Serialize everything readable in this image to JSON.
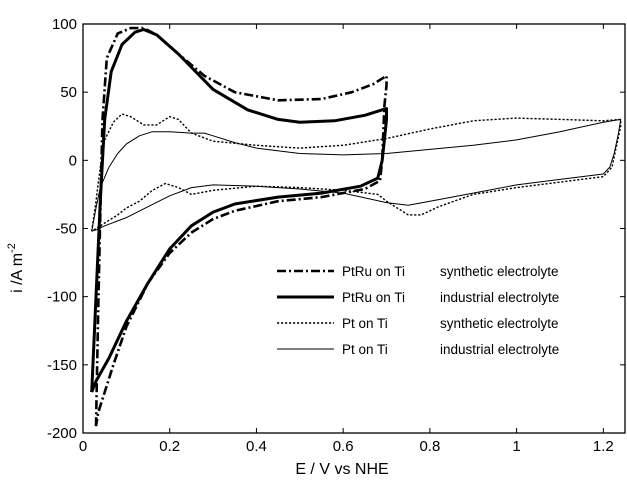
{
  "chart_data": {
    "type": "line",
    "title": "",
    "xlabel": "E / V vs NHE",
    "ylabel": "i /A m-2",
    "ylabel_main": "i /A m",
    "ylabel_sup": "-2",
    "xlim": [
      0,
      1.25
    ],
    "ylim": [
      -200,
      100
    ],
    "xticks": [
      0,
      0.2,
      0.4,
      0.6,
      0.8,
      1,
      1.2
    ],
    "xtick_labels": [
      "0",
      "0.2",
      "0.4",
      "0.6",
      "0.8",
      "1",
      "1.2"
    ],
    "yticks": [
      100,
      50,
      0,
      -50,
      -100,
      -150,
      -200
    ],
    "ytick_labels": [
      "100",
      "50",
      "0",
      "-50",
      "-100",
      "-150",
      "-200"
    ],
    "grid": false,
    "legend_position": "lower-right",
    "series": [
      {
        "style": "dashdot",
        "color": "#000000",
        "legend_material": "PtRu on Ti",
        "legend_desc": "synthetic electrolyte",
        "points": [
          [
            0.03,
            -195
          ],
          [
            0.035,
            -110
          ],
          [
            0.04,
            -40
          ],
          [
            0.045,
            30
          ],
          [
            0.055,
            75
          ],
          [
            0.08,
            93
          ],
          [
            0.11,
            97
          ],
          [
            0.14,
            97
          ],
          [
            0.17,
            92
          ],
          [
            0.22,
            78
          ],
          [
            0.28,
            62
          ],
          [
            0.35,
            50
          ],
          [
            0.45,
            44
          ],
          [
            0.55,
            45
          ],
          [
            0.62,
            50
          ],
          [
            0.67,
            56
          ],
          [
            0.7,
            62
          ],
          [
            0.7,
            55
          ],
          [
            0.695,
            40
          ],
          [
            0.69,
            0
          ],
          [
            0.685,
            -15
          ],
          [
            0.65,
            -21
          ],
          [
            0.55,
            -27
          ],
          [
            0.45,
            -30
          ],
          [
            0.35,
            -37
          ],
          [
            0.3,
            -43
          ],
          [
            0.25,
            -53
          ],
          [
            0.2,
            -68
          ],
          [
            0.15,
            -90
          ],
          [
            0.1,
            -122
          ],
          [
            0.07,
            -150
          ],
          [
            0.05,
            -170
          ],
          [
            0.035,
            -185
          ],
          [
            0.03,
            -195
          ]
        ]
      },
      {
        "style": "solid-thick",
        "color": "#000000",
        "legend_material": "PtRu on Ti",
        "legend_desc": "industrial electrolyte",
        "points": [
          [
            0.02,
            -170
          ],
          [
            0.03,
            -100
          ],
          [
            0.04,
            -30
          ],
          [
            0.05,
            30
          ],
          [
            0.065,
            65
          ],
          [
            0.09,
            85
          ],
          [
            0.12,
            94
          ],
          [
            0.14,
            96
          ],
          [
            0.17,
            92
          ],
          [
            0.22,
            78
          ],
          [
            0.3,
            52
          ],
          [
            0.38,
            37
          ],
          [
            0.45,
            30
          ],
          [
            0.5,
            28
          ],
          [
            0.58,
            29
          ],
          [
            0.65,
            33
          ],
          [
            0.7,
            38
          ],
          [
            0.7,
            30
          ],
          [
            0.695,
            15
          ],
          [
            0.69,
            0
          ],
          [
            0.68,
            -13
          ],
          [
            0.64,
            -19
          ],
          [
            0.55,
            -24
          ],
          [
            0.45,
            -27
          ],
          [
            0.35,
            -32
          ],
          [
            0.3,
            -38
          ],
          [
            0.25,
            -48
          ],
          [
            0.2,
            -65
          ],
          [
            0.15,
            -90
          ],
          [
            0.1,
            -118
          ],
          [
            0.06,
            -145
          ],
          [
            0.03,
            -162
          ],
          [
            0.02,
            -170
          ]
        ]
      },
      {
        "style": "dotted",
        "color": "#000000",
        "legend_material": "Pt on Ti",
        "legend_desc": "synthetic electrolyte",
        "points": [
          [
            0.02,
            -52
          ],
          [
            0.03,
            -30
          ],
          [
            0.04,
            -5
          ],
          [
            0.05,
            15
          ],
          [
            0.07,
            28
          ],
          [
            0.09,
            34
          ],
          [
            0.11,
            32
          ],
          [
            0.14,
            26
          ],
          [
            0.17,
            26
          ],
          [
            0.2,
            32
          ],
          [
            0.22,
            30
          ],
          [
            0.25,
            20
          ],
          [
            0.3,
            14
          ],
          [
            0.4,
            11
          ],
          [
            0.5,
            9
          ],
          [
            0.6,
            11
          ],
          [
            0.7,
            16
          ],
          [
            0.8,
            23
          ],
          [
            0.9,
            29
          ],
          [
            1.0,
            31
          ],
          [
            1.1,
            30
          ],
          [
            1.2,
            29
          ],
          [
            1.24,
            30
          ],
          [
            1.24,
            25
          ],
          [
            1.23,
            10
          ],
          [
            1.22,
            -5
          ],
          [
            1.2,
            -12
          ],
          [
            1.1,
            -16
          ],
          [
            1.0,
            -20
          ],
          [
            0.9,
            -25
          ],
          [
            0.82,
            -34
          ],
          [
            0.78,
            -40
          ],
          [
            0.75,
            -40
          ],
          [
            0.7,
            -30
          ],
          [
            0.68,
            -25
          ],
          [
            0.6,
            -22
          ],
          [
            0.5,
            -20
          ],
          [
            0.4,
            -19
          ],
          [
            0.3,
            -22
          ],
          [
            0.25,
            -25
          ],
          [
            0.22,
            -20
          ],
          [
            0.19,
            -17
          ],
          [
            0.16,
            -22
          ],
          [
            0.13,
            -30
          ],
          [
            0.1,
            -35
          ],
          [
            0.08,
            -40
          ],
          [
            0.05,
            -46
          ],
          [
            0.03,
            -50
          ],
          [
            0.02,
            -52
          ]
        ]
      },
      {
        "style": "solid-thin",
        "color": "#000000",
        "legend_material": "Pt on Ti",
        "legend_desc": "industrial electrolyte",
        "points": [
          [
            0.02,
            -52
          ],
          [
            0.03,
            -35
          ],
          [
            0.04,
            -20
          ],
          [
            0.06,
            -5
          ],
          [
            0.08,
            5
          ],
          [
            0.1,
            12
          ],
          [
            0.13,
            18
          ],
          [
            0.16,
            21
          ],
          [
            0.2,
            21
          ],
          [
            0.25,
            20
          ],
          [
            0.28,
            20
          ],
          [
            0.3,
            18
          ],
          [
            0.35,
            13
          ],
          [
            0.4,
            9
          ],
          [
            0.5,
            5
          ],
          [
            0.6,
            4
          ],
          [
            0.7,
            5
          ],
          [
            0.8,
            8
          ],
          [
            0.9,
            11
          ],
          [
            1.0,
            15
          ],
          [
            1.1,
            21
          ],
          [
            1.2,
            28
          ],
          [
            1.24,
            30
          ],
          [
            1.235,
            20
          ],
          [
            1.225,
            5
          ],
          [
            1.215,
            -5
          ],
          [
            1.2,
            -10
          ],
          [
            1.1,
            -14
          ],
          [
            1.0,
            -18
          ],
          [
            0.9,
            -24
          ],
          [
            0.8,
            -30
          ],
          [
            0.75,
            -33
          ],
          [
            0.7,
            -31
          ],
          [
            0.6,
            -24
          ],
          [
            0.5,
            -21
          ],
          [
            0.4,
            -19
          ],
          [
            0.3,
            -18
          ],
          [
            0.25,
            -20
          ],
          [
            0.2,
            -26
          ],
          [
            0.15,
            -34
          ],
          [
            0.1,
            -42
          ],
          [
            0.05,
            -48
          ],
          [
            0.03,
            -51
          ],
          [
            0.02,
            -52
          ]
        ]
      }
    ]
  }
}
